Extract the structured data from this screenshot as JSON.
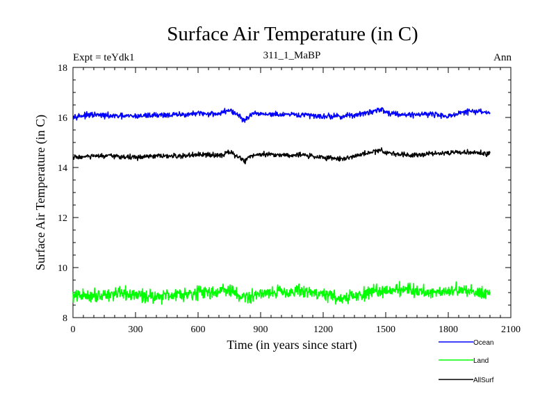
{
  "chart_data": {
    "type": "line",
    "title": "Surface Air Temperature (in C)",
    "subtitle_left": "Expt = teYdk1",
    "subtitle_center": "311_1_MaBP",
    "subtitle_right": "Ann",
    "xlabel": "Time (in years since start)",
    "ylabel": "Surface Air Temperature (in C)",
    "xlim": [
      0,
      2100
    ],
    "ylim": [
      8,
      18
    ],
    "xticks": [
      0,
      300,
      600,
      900,
      1200,
      1500,
      1800,
      2100
    ],
    "yticks": [
      8,
      10,
      12,
      14,
      16,
      18
    ],
    "xtick_labels": [
      "0",
      "300",
      "600",
      "900",
      "1200",
      "1500",
      "1800",
      "2100"
    ],
    "ytick_labels": [
      "8",
      "10",
      "12",
      "14",
      "16",
      "18"
    ],
    "legend_position": "bottom-right, below plot",
    "series": [
      {
        "name": "Ocean",
        "color": "#0000ff",
        "x": [
          0,
          100,
          200,
          300,
          400,
          500,
          600,
          700,
          750,
          800,
          825,
          850,
          900,
          1000,
          1100,
          1200,
          1300,
          1400,
          1480,
          1500,
          1600,
          1700,
          1800,
          1900,
          2000
        ],
        "y": [
          16.05,
          16.1,
          16.05,
          16.05,
          16.1,
          16.1,
          16.15,
          16.15,
          16.3,
          16.05,
          15.85,
          16.1,
          16.15,
          16.1,
          16.1,
          16.05,
          16.05,
          16.15,
          16.35,
          16.2,
          16.1,
          16.15,
          16.05,
          16.25,
          16.2
        ]
      },
      {
        "name": "Land",
        "color": "#00ff00",
        "x": [
          0,
          100,
          200,
          300,
          400,
          500,
          600,
          700,
          750,
          800,
          850,
          900,
          1000,
          1100,
          1200,
          1300,
          1400,
          1500,
          1600,
          1700,
          1800,
          1900,
          2000
        ],
        "y": [
          8.85,
          8.9,
          8.95,
          8.9,
          8.85,
          8.95,
          9.0,
          9.05,
          9.1,
          8.85,
          8.8,
          9.0,
          9.05,
          9.05,
          8.95,
          8.75,
          8.95,
          9.1,
          9.15,
          9.0,
          9.1,
          9.05,
          9.0
        ]
      },
      {
        "name": "AllSurf",
        "color": "#000000",
        "x": [
          0,
          100,
          200,
          300,
          400,
          500,
          600,
          700,
          750,
          800,
          825,
          850,
          900,
          1000,
          1100,
          1200,
          1300,
          1400,
          1480,
          1500,
          1600,
          1700,
          1800,
          1900,
          2000
        ],
        "y": [
          14.4,
          14.45,
          14.45,
          14.4,
          14.45,
          14.45,
          14.5,
          14.5,
          14.6,
          14.4,
          14.25,
          14.45,
          14.55,
          14.5,
          14.5,
          14.4,
          14.35,
          14.55,
          14.7,
          14.6,
          14.5,
          14.55,
          14.6,
          14.6,
          14.55
        ]
      }
    ]
  }
}
